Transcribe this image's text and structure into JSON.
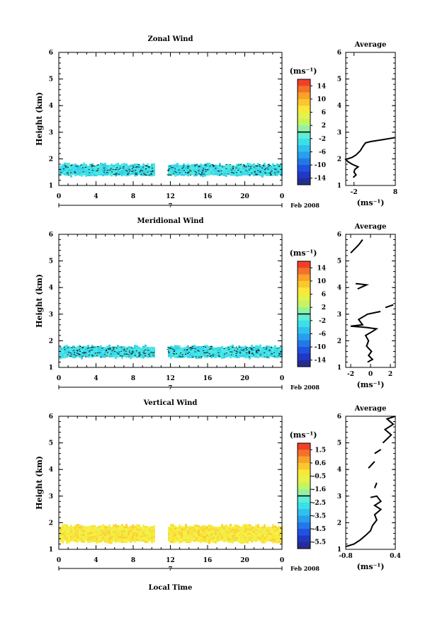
{
  "chart_data": [
    {
      "type": "heatmap",
      "title": "Zonal Wind",
      "ylabel": "Height (km)",
      "ylim": [
        1,
        6
      ],
      "yticks": [
        "1",
        "2",
        "3",
        "4",
        "5",
        "6"
      ],
      "xlim": [
        0,
        24
      ],
      "xticks": [
        "0",
        "4",
        "8",
        "12",
        "16",
        "20",
        "0"
      ],
      "date_day": "7",
      "date_label": "Feb 2008",
      "colorbar": {
        "unit": "(ms⁻¹)",
        "ticks": [
          "14",
          "10",
          "6",
          "2",
          "-2",
          "-6",
          "-10",
          "-14"
        ],
        "vmin": -16,
        "vmax": 16
      },
      "data_band": {
        "height_min": 1.4,
        "height_max": 1.8,
        "dominant_value": -3
      },
      "profile": {
        "title": "Average",
        "xlabel": "(ms⁻¹)",
        "xticks": [
          "-2",
          "8"
        ],
        "xlim": [
          -4,
          8
        ],
        "points": [
          [
            -2.2,
            1.3
          ],
          [
            -1.5,
            1.4
          ],
          [
            -2.0,
            1.5
          ],
          [
            -1.8,
            1.6
          ],
          [
            -1.0,
            1.7
          ],
          [
            -2.5,
            1.8
          ],
          [
            -3.5,
            1.9
          ],
          [
            -4.0,
            1.98
          ],
          [
            -2.5,
            2.05
          ],
          [
            -1.5,
            2.15
          ],
          [
            -0.5,
            2.3
          ],
          [
            0.3,
            2.5
          ],
          [
            0.8,
            2.6
          ],
          [
            2.0,
            2.65
          ],
          [
            5.0,
            2.72
          ],
          [
            8.0,
            2.8
          ]
        ]
      }
    },
    {
      "type": "heatmap",
      "title": "Meridional Wind",
      "ylabel": "Height (km)",
      "ylim": [
        1,
        6
      ],
      "yticks": [
        "1",
        "2",
        "3",
        "4",
        "5",
        "6"
      ],
      "xlim": [
        0,
        24
      ],
      "xticks": [
        "0",
        "4",
        "8",
        "12",
        "16",
        "20",
        "0"
      ],
      "date_day": "7",
      "date_label": "Feb 2008",
      "colorbar": {
        "unit": "(ms⁻¹)",
        "ticks": [
          "14",
          "10",
          "6",
          "2",
          "-2",
          "-6",
          "-10",
          "-14"
        ],
        "vmin": -16,
        "vmax": 16
      },
      "data_band": {
        "height_min": 1.4,
        "height_max": 1.8,
        "dominant_value": -3
      },
      "profile": {
        "title": "Average",
        "xlabel": "(ms⁻¹)",
        "xticks": [
          "-2",
          "0",
          "2"
        ],
        "xlim": [
          -2.5,
          2.5
        ],
        "segments": [
          [
            [
              -0.3,
              1.2
            ],
            [
              0.2,
              1.3
            ],
            [
              -0.2,
              1.45
            ],
            [
              0.1,
              1.6
            ],
            [
              -0.4,
              1.8
            ],
            [
              -0.2,
              2.0
            ],
            [
              -0.5,
              2.2
            ],
            [
              0.2,
              2.35
            ],
            [
              0.6,
              2.45
            ],
            [
              -0.4,
              2.5
            ],
            [
              -2.0,
              2.55
            ],
            [
              -0.8,
              2.6
            ],
            [
              -1.2,
              2.8
            ],
            [
              -0.3,
              3.0
            ],
            [
              1.0,
              3.1
            ]
          ],
          [
            [
              1.5,
              3.25
            ],
            [
              2.3,
              3.35
            ]
          ],
          [
            [
              -1.3,
              3.95
            ],
            [
              -0.4,
              4.1
            ],
            [
              -1.5,
              4.15
            ]
          ],
          [
            [
              -2.0,
              5.3
            ],
            [
              -1.2,
              5.6
            ],
            [
              -0.8,
              5.8
            ]
          ]
        ]
      }
    },
    {
      "type": "heatmap",
      "title": "Vertical Wind",
      "ylabel": "Height (km)",
      "xlabel": "Local Time",
      "ylim": [
        1,
        6
      ],
      "yticks": [
        "1",
        "2",
        "3",
        "4",
        "5",
        "6"
      ],
      "xlim": [
        0,
        24
      ],
      "xticks": [
        "0",
        "4",
        "8",
        "12",
        "16",
        "20",
        "0"
      ],
      "date_day": "7",
      "date_label": "Feb 2008",
      "colorbar": {
        "unit": "(ms⁻¹)",
        "ticks": [
          "1.5",
          "0.6",
          "-0.5",
          "-1.6",
          "-2.5",
          "-3.5",
          "-4.5",
          "-5.5"
        ],
        "vmin": -6,
        "vmax": 2
      },
      "data_band": {
        "height_min": 1.3,
        "height_max": 1.9,
        "dominant_value": -0.3
      },
      "profile": {
        "title": "Average",
        "xlabel": "(ms⁻¹)",
        "xticks": [
          "-0.8",
          "0.4"
        ],
        "xlim": [
          -0.8,
          0.4
        ],
        "segments": [
          [
            [
              -0.8,
              1.1
            ],
            [
              -0.6,
              1.2
            ],
            [
              -0.45,
              1.35
            ],
            [
              -0.3,
              1.55
            ],
            [
              -0.2,
              1.7
            ],
            [
              -0.15,
              1.9
            ],
            [
              -0.05,
              2.1
            ],
            [
              -0.1,
              2.3
            ],
            [
              0.05,
              2.5
            ],
            [
              -0.1,
              2.65
            ],
            [
              0.05,
              2.8
            ],
            [
              -0.05,
              3.0
            ],
            [
              -0.2,
              2.95
            ]
          ],
          [
            [
              -0.1,
              3.3
            ],
            [
              -0.05,
              3.5
            ]
          ],
          [
            [
              -0.25,
              4.05
            ],
            [
              -0.1,
              4.3
            ]
          ],
          [
            [
              -0.1,
              4.6
            ],
            [
              0.05,
              4.75
            ]
          ],
          [
            [
              0.1,
              5.0
            ],
            [
              0.3,
              5.3
            ],
            [
              0.15,
              5.5
            ],
            [
              0.35,
              5.7
            ],
            [
              0.2,
              5.9
            ],
            [
              0.4,
              6.0
            ]
          ]
        ]
      }
    }
  ]
}
